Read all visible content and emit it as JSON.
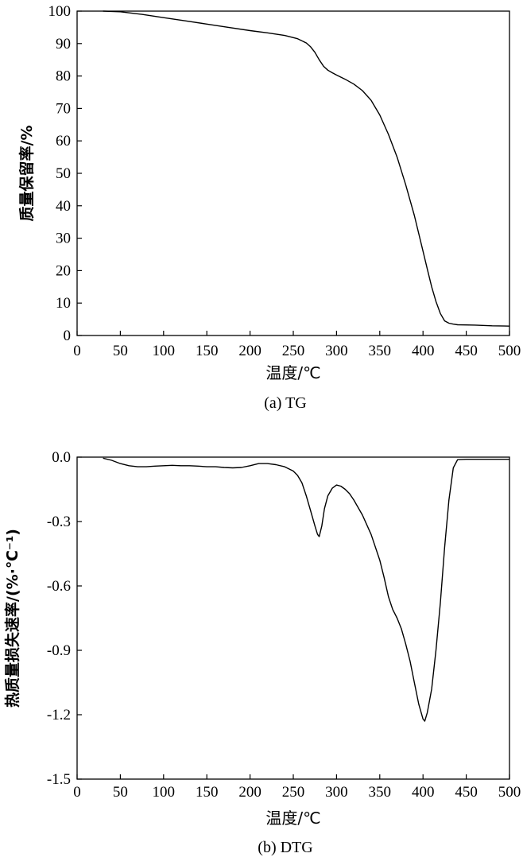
{
  "chart_data": [
    {
      "type": "line",
      "caption": "(a) TG",
      "xlabel": "温度/℃",
      "ylabel": "质量保留率/%",
      "xlim": [
        0,
        500
      ],
      "ylim": [
        0,
        100
      ],
      "xticks": [
        "0",
        "50",
        "100",
        "150",
        "200",
        "250",
        "300",
        "350",
        "400",
        "450",
        "500"
      ],
      "yticks": [
        "0",
        "10",
        "20",
        "30",
        "40",
        "50",
        "60",
        "70",
        "80",
        "90",
        "100"
      ],
      "grid": false,
      "series": [
        {
          "x": [
            30,
            50,
            75,
            100,
            125,
            150,
            175,
            200,
            220,
            240,
            255,
            265,
            270,
            275,
            280,
            285,
            290,
            295,
            300,
            310,
            320,
            330,
            340,
            350,
            360,
            370,
            380,
            390,
            400,
            405,
            410,
            415,
            420,
            425,
            430,
            435,
            440,
            460,
            480,
            500
          ],
          "y": [
            100,
            99.8,
            99.0,
            98.0,
            97.0,
            96.0,
            95.0,
            94.0,
            93.3,
            92.5,
            91.5,
            90.2,
            89.0,
            87.3,
            85.0,
            83.0,
            81.8,
            81.0,
            80.3,
            79.0,
            77.5,
            75.5,
            72.5,
            68.0,
            62.0,
            55.0,
            46.5,
            37.0,
            26.0,
            20.5,
            15.0,
            10.5,
            6.8,
            4.5,
            3.8,
            3.5,
            3.3,
            3.2,
            3.0,
            2.9
          ]
        }
      ]
    },
    {
      "type": "line",
      "caption": "(b) DTG",
      "xlabel": "温度/℃",
      "ylabel": "热质量损失速率/(%·℃⁻¹)",
      "xlim": [
        0,
        500
      ],
      "ylim": [
        -1.5,
        0.0
      ],
      "xticks": [
        "0",
        "50",
        "100",
        "150",
        "200",
        "250",
        "300",
        "350",
        "400",
        "450",
        "500"
      ],
      "yticks": [
        "-1.5",
        "-1.2",
        "-0.9",
        "-0.6",
        "-0.3",
        "0.0"
      ],
      "grid": false,
      "series": [
        {
          "x": [
            30,
            40,
            50,
            60,
            70,
            80,
            90,
            100,
            110,
            120,
            130,
            140,
            150,
            160,
            170,
            180,
            190,
            200,
            210,
            220,
            230,
            240,
            250,
            255,
            260,
            265,
            270,
            275,
            278,
            280,
            283,
            286,
            290,
            295,
            300,
            305,
            310,
            315,
            320,
            330,
            340,
            350,
            355,
            360,
            365,
            370,
            375,
            380,
            385,
            390,
            395,
            400,
            402,
            405,
            410,
            415,
            420,
            425,
            430,
            435,
            440,
            450,
            460,
            470,
            480,
            490,
            500
          ],
          "y": [
            -0.005,
            -0.015,
            -0.03,
            -0.04,
            -0.045,
            -0.045,
            -0.042,
            -0.04,
            -0.038,
            -0.04,
            -0.04,
            -0.042,
            -0.045,
            -0.045,
            -0.048,
            -0.05,
            -0.048,
            -0.04,
            -0.03,
            -0.03,
            -0.035,
            -0.045,
            -0.065,
            -0.085,
            -0.12,
            -0.18,
            -0.25,
            -0.32,
            -0.36,
            -0.37,
            -0.32,
            -0.24,
            -0.18,
            -0.145,
            -0.13,
            -0.135,
            -0.15,
            -0.17,
            -0.2,
            -0.27,
            -0.36,
            -0.48,
            -0.56,
            -0.65,
            -0.71,
            -0.75,
            -0.8,
            -0.87,
            -0.95,
            -1.05,
            -1.15,
            -1.22,
            -1.23,
            -1.19,
            -1.08,
            -0.9,
            -0.68,
            -0.42,
            -0.2,
            -0.05,
            -0.012,
            -0.01,
            -0.01,
            -0.01,
            -0.01,
            -0.01,
            -0.01
          ]
        }
      ]
    }
  ]
}
